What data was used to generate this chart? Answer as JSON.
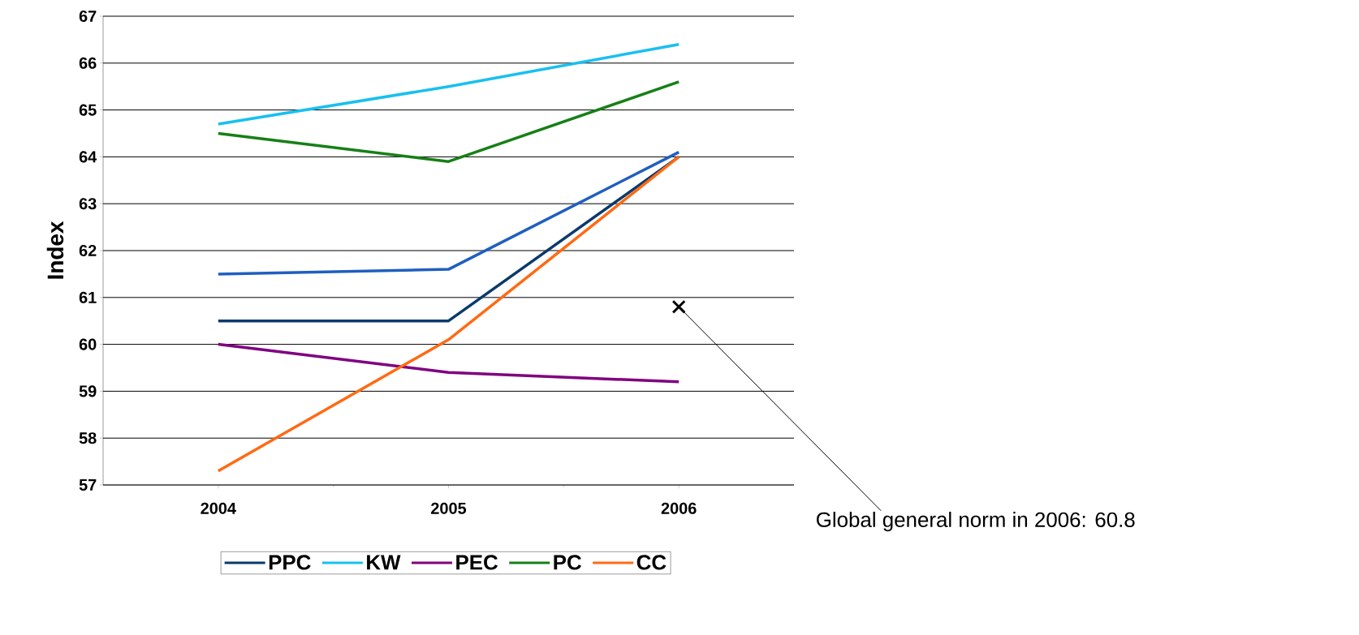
{
  "chart_data": {
    "type": "line",
    "ylabel": "Index",
    "categories": [
      "2004",
      "2005",
      "2006"
    ],
    "series": [
      {
        "color": "#1f5fbf",
        "values": [
          61.5,
          61.6,
          64.1
        ]
      },
      {
        "name": "PPC",
        "color": "#0a3a6b",
        "values": [
          60.5,
          60.5,
          64.0
        ]
      },
      {
        "name": "KW",
        "color": "#17c0f0",
        "values": [
          64.7,
          65.5,
          66.4
        ]
      },
      {
        "name": "PEC",
        "color": "#800080",
        "values": [
          60.0,
          59.4,
          59.2
        ]
      },
      {
        "name": "PC",
        "color": "#168016",
        "values": [
          64.5,
          63.9,
          65.6
        ]
      },
      {
        "name": "CC",
        "color": "#ff6a13",
        "values": [
          57.3,
          60.1,
          64.0
        ]
      },
      {
        "type": "scatter",
        "marker": "cross",
        "color": "#000000",
        "values": [
          null,
          null,
          60.8
        ]
      }
    ],
    "ylim": [
      57,
      67
    ],
    "yticks": [
      57,
      58,
      59,
      60,
      61,
      62,
      63,
      64,
      65,
      66,
      67
    ],
    "grid": "y",
    "legend": "bottom",
    "annotations": [
      {
        "text": "Global general norm in 2006: 60.8",
        "x": "2006",
        "y": 60.8
      }
    ]
  }
}
